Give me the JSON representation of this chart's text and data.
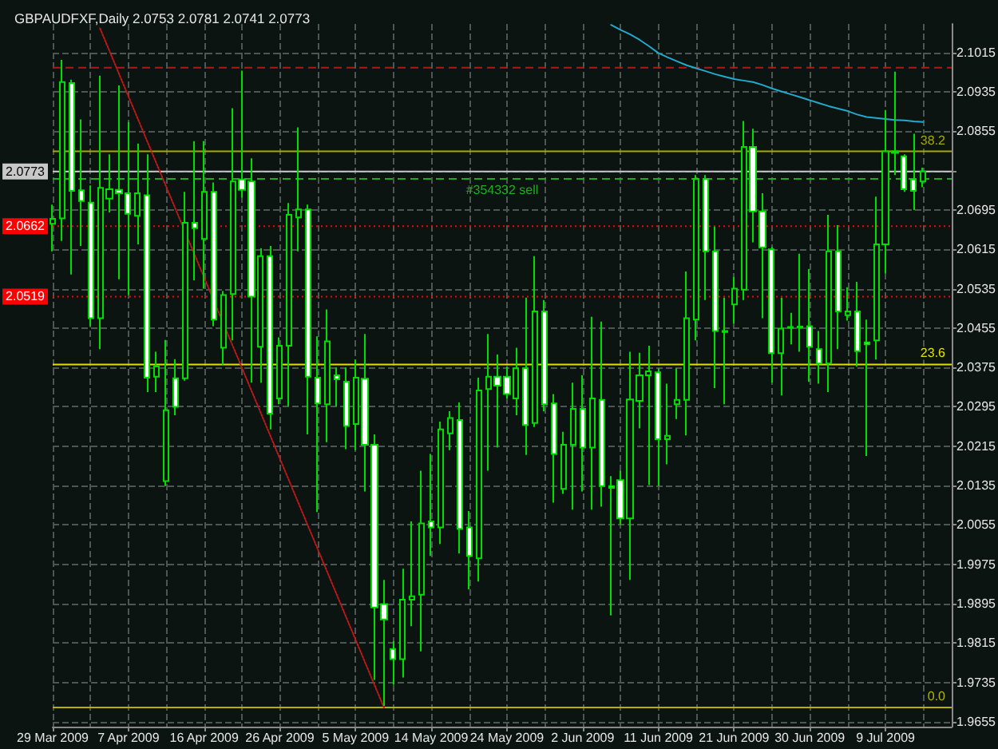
{
  "chart_data": {
    "type": "candlestick",
    "title": "GBPAUDFXF,Daily 2.0753 2.0781 2.0741 2.0773",
    "categories": [
      "29 Mar 2009",
      null,
      null,
      null,
      null,
      null,
      null,
      null,
      "7 Apr 2009",
      null,
      null,
      null,
      null,
      null,
      null,
      null,
      "16 Apr 2009",
      null,
      null,
      null,
      null,
      null,
      null,
      null,
      "26 Apr 2009",
      null,
      null,
      null,
      null,
      null,
      null,
      null,
      "5 May 2009",
      null,
      null,
      null,
      null,
      null,
      null,
      null,
      "14 May 2009",
      null,
      null,
      null,
      null,
      null,
      null,
      null,
      "24 May 2009",
      null,
      null,
      null,
      null,
      null,
      null,
      null,
      "2 Jun 2009",
      null,
      null,
      null,
      null,
      null,
      null,
      null,
      "11 Jun 2009",
      null,
      null,
      null,
      null,
      null,
      null,
      null,
      "21 Jun 2009",
      null,
      null,
      null,
      null,
      null,
      null,
      null,
      "30 Jun 2009",
      null,
      null,
      null,
      null,
      null,
      null,
      null,
      "9 Jul 2009",
      null,
      null,
      null,
      null,
      null,
      null,
      null
    ],
    "series": [
      {
        "color": "#00dd00",
        "ohlc": [
          [
            2.0667,
            2.0706,
            2.0611,
            2.0677
          ],
          [
            2.0678,
            2.1,
            2.0632,
            2.0955
          ],
          [
            2.0953,
            2.096,
            2.0564,
            2.0734
          ],
          [
            2.0735,
            2.0879,
            2.0622,
            2.0713
          ],
          [
            2.071,
            2.0745,
            2.0459,
            2.0475
          ],
          [
            2.0475,
            2.0968,
            2.0412,
            2.074
          ],
          [
            2.0718,
            2.0808,
            2.069,
            2.0737
          ],
          [
            2.0736,
            2.0948,
            2.0554,
            2.0729
          ],
          [
            2.0729,
            2.0874,
            2.0522,
            2.0687
          ],
          [
            2.0683,
            2.083,
            2.0625,
            2.0729
          ],
          [
            2.0725,
            2.0808,
            2.0325,
            2.0354
          ],
          [
            2.0356,
            2.0407,
            2.0325,
            2.0377
          ],
          [
            2.0144,
            2.0431,
            2.0134,
            2.0288
          ],
          [
            2.0353,
            2.0392,
            2.0278,
            2.0295
          ],
          [
            2.0353,
            2.0732,
            2.0348,
            2.0669
          ],
          [
            2.0669,
            2.0835,
            2.0552,
            2.0658
          ],
          [
            2.0636,
            2.0835,
            2.0535,
            2.0732
          ],
          [
            2.0732,
            2.0751,
            2.0459,
            2.0472
          ],
          [
            2.0415,
            2.053,
            2.038,
            2.0522
          ],
          [
            2.0524,
            2.0902,
            2.043,
            2.0753
          ],
          [
            2.0757,
            2.0978,
            2.072,
            2.0736
          ],
          [
            2.0753,
            2.08,
            2.0344,
            2.0519
          ],
          [
            2.0417,
            2.0617,
            2.0344,
            2.0601
          ],
          [
            2.0601,
            2.0622,
            2.0249,
            2.0281
          ],
          [
            2.0312,
            2.0436,
            2.03,
            2.0419
          ],
          [
            2.0419,
            2.0709,
            2.0296,
            2.0685
          ],
          [
            2.068,
            2.0863,
            2.0611,
            2.0696
          ],
          [
            2.0696,
            2.0706,
            2.0239,
            2.0356
          ],
          [
            2.0354,
            2.0438,
            2.0081,
            2.0302
          ],
          [
            2.03,
            2.0493,
            2.0223,
            2.0428
          ],
          [
            2.0359,
            2.0375,
            2.0296,
            2.0351
          ],
          [
            2.0346,
            2.0375,
            2.0209,
            2.0256
          ],
          [
            2.026,
            2.0391,
            2.0207,
            2.0354
          ],
          [
            2.0352,
            2.0443,
            2.0123,
            2.0218
          ],
          [
            2.0218,
            2.0239,
            1.974,
            1.9887
          ],
          [
            1.9894,
            1.9943,
            1.9687,
            1.9863
          ],
          [
            1.9803,
            1.9819,
            1.973,
            1.9782
          ],
          [
            1.9782,
            1.9966,
            1.9745,
            1.9903
          ],
          [
            1.9903,
            2.0062,
            1.9849,
            1.991
          ],
          [
            1.9913,
            2.0165,
            1.9798,
            2.0058
          ],
          [
            2.0062,
            2.0199,
            1.9992,
            2.005
          ],
          [
            2.005,
            2.0265,
            2.0016,
            2.0249
          ],
          [
            2.0241,
            2.0286,
            2.0207,
            2.0272
          ],
          [
            2.0268,
            2.0304,
            1.9997,
            2.0047
          ],
          [
            2.005,
            2.0083,
            1.9924,
            1.9992
          ],
          [
            1.9987,
            2.0354,
            1.994,
            2.0328
          ],
          [
            2.0331,
            2.0443,
            2.0165,
            2.0356
          ],
          [
            2.0356,
            2.0401,
            2.0212,
            2.0338
          ],
          [
            2.0356,
            2.0377,
            2.0312,
            2.0321
          ],
          [
            2.0312,
            2.0415,
            2.0278,
            2.0373
          ],
          [
            2.0373,
            2.0517,
            2.0197,
            2.0258
          ],
          [
            2.0262,
            2.0601,
            2.0254,
            2.0489
          ],
          [
            2.0489,
            2.0512,
            2.0286,
            2.03
          ],
          [
            2.0302,
            2.0321,
            2.01,
            2.0199
          ],
          [
            2.0128,
            2.0244,
            2.0118,
            2.0218
          ],
          [
            2.0218,
            2.0344,
            2.0086,
            2.0291
          ],
          [
            2.0291,
            2.0359,
            2.0123,
            2.0212
          ],
          [
            2.0212,
            2.0478,
            2.0086,
            2.0312
          ],
          [
            2.0309,
            2.0468,
            2.0092,
            2.0134
          ],
          [
            2.0134,
            2.0154,
            1.9871,
            2.013
          ],
          [
            2.0146,
            2.0165,
            2.0055,
            2.0068
          ],
          [
            2.0068,
            2.0407,
            1.9943,
            2.031
          ],
          [
            2.0307,
            2.0405,
            2.0251,
            2.0359
          ],
          [
            2.0359,
            2.0419,
            2.0136,
            2.0367
          ],
          [
            2.0365,
            2.0373,
            2.0134,
            2.0229
          ],
          [
            2.0229,
            2.0342,
            2.0178,
            2.0236
          ],
          [
            2.03,
            2.0373,
            2.027,
            2.0309
          ],
          [
            2.0309,
            2.057,
            2.0237,
            2.0475
          ],
          [
            2.0472,
            2.0766,
            2.043,
            2.0758
          ],
          [
            2.0758,
            2.0766,
            2.0512,
            2.0611
          ],
          [
            2.0611,
            2.0661,
            2.0333,
            2.0449
          ],
          [
            2.0449,
            2.0517,
            2.03,
            2.0447
          ],
          [
            2.0503,
            2.0559,
            2.0464,
            2.0535
          ],
          [
            2.0533,
            2.0876,
            2.0512,
            2.0823
          ],
          [
            2.0823,
            2.086,
            2.0629,
            2.0692
          ],
          [
            2.0692,
            2.0729,
            2.0475,
            2.0619
          ],
          [
            2.0615,
            2.062,
            2.0344,
            2.0404
          ],
          [
            2.0404,
            2.0517,
            2.0318,
            2.0454
          ],
          [
            2.0455,
            2.0486,
            2.0422,
            2.0457
          ],
          [
            2.0458,
            2.0606,
            2.0407,
            2.0456
          ],
          [
            2.0459,
            2.0575,
            2.0346,
            2.0417
          ],
          [
            2.0412,
            2.0449,
            2.0342,
            2.0383
          ],
          [
            2.0383,
            2.0685,
            2.0325,
            2.0611
          ],
          [
            2.0611,
            2.0664,
            2.0412,
            2.0489
          ],
          [
            2.0481,
            2.0538,
            2.047,
            2.0489
          ],
          [
            2.0489,
            2.0549,
            2.0377,
            2.0408
          ],
          [
            2.0426,
            2.0472,
            2.0195,
            2.0422
          ],
          [
            2.043,
            2.0722,
            2.0391,
            2.0625
          ],
          [
            2.0625,
            2.0898,
            2.0566,
            2.0814
          ],
          [
            2.0811,
            2.0976,
            2.0766,
            2.0814
          ],
          [
            2.0804,
            2.0808,
            2.0732,
            2.0737
          ],
          [
            2.0757,
            2.085,
            2.0695,
            2.0734
          ],
          [
            2.0753,
            2.0781,
            2.0741,
            2.0773
          ],
          null,
          null,
          null
        ]
      },
      {
        "type": "line",
        "color": "#22aacc",
        "values": [
          null,
          null,
          null,
          null,
          null,
          null,
          null,
          null,
          null,
          null,
          null,
          null,
          null,
          null,
          null,
          null,
          null,
          null,
          null,
          null,
          null,
          null,
          null,
          null,
          null,
          null,
          null,
          null,
          null,
          null,
          null,
          null,
          null,
          null,
          null,
          null,
          null,
          null,
          null,
          null,
          null,
          null,
          null,
          null,
          null,
          null,
          null,
          null,
          null,
          null,
          null,
          null,
          null,
          null,
          null,
          null,
          null,
          null,
          null,
          2.1071,
          2.1061,
          2.1052,
          2.1041,
          2.1028,
          2.1014,
          2.1005,
          2.0997,
          2.0989,
          2.0983,
          2.0977,
          2.0971,
          2.0966,
          2.0961,
          2.0958,
          2.0955,
          2.0949,
          2.0942,
          2.0936,
          2.093,
          2.0924,
          2.0918,
          2.0912,
          2.0906,
          2.0901,
          2.0896,
          2.0889,
          2.0884,
          2.0882,
          2.088,
          2.0878,
          2.0877,
          2.0875,
          2.0874,
          null,
          null,
          null
        ]
      },
      {
        "type": "line",
        "color": "#c01818",
        "line_style": "dotted",
        "values": [
          null,
          null,
          null,
          null,
          null,
          2.1064,
          2.1018,
          2.0972,
          2.0926,
          2.088,
          2.0834,
          2.0788,
          2.0742,
          2.0696,
          2.065,
          2.0604,
          2.0558,
          2.0512,
          2.0466,
          2.042,
          2.0374,
          2.0328,
          2.0282,
          2.0236,
          2.019,
          2.0144,
          2.0098,
          2.0052,
          2.0006,
          1.996,
          1.9914,
          1.9868,
          1.9822,
          1.9776,
          1.973,
          1.9684,
          null,
          null,
          null,
          null,
          null,
          null,
          null,
          null,
          null,
          null,
          null,
          null,
          null,
          null,
          null,
          null,
          null,
          null,
          null,
          null,
          null,
          null,
          null,
          null,
          null,
          null,
          null,
          null,
          null,
          null,
          null,
          null,
          null,
          null,
          null,
          null,
          null,
          null,
          null,
          null,
          null,
          null,
          null,
          null,
          null,
          null,
          null,
          null,
          null,
          null,
          null,
          null,
          null,
          null,
          null,
          null,
          null,
          null,
          null,
          null
        ]
      }
    ],
    "ylim": [
      1.9645,
      2.1073
    ],
    "yticks": [
      1.9655,
      1.9735,
      1.9815,
      1.9895,
      1.9975,
      2.0055,
      2.0135,
      2.0215,
      2.0295,
      2.0375,
      2.0455,
      2.0535,
      2.0615,
      2.0695,
      {
        "value": 2.0775,
        "label": null
      },
      2.0855,
      2.0935,
      2.1015
    ],
    "grid": true,
    "marker": "none",
    "ref_lines": [
      {
        "axis": "y",
        "value": 2.0984,
        "color": "#b01818",
        "line_style": "dashed"
      },
      {
        "axis": "y",
        "value": 2.0814,
        "color": "#a8a800",
        "line_style": "solid"
      },
      {
        "axis": "y",
        "value": 2.0773,
        "label": "2.0773",
        "color": "#c8c8c8",
        "line_style": "solid"
      },
      {
        "axis": "y",
        "value": 2.0758,
        "label": "#354332 sell",
        "color": "#22aa22",
        "line_style": "dashed"
      },
      {
        "axis": "y",
        "value": 2.0662,
        "label": "2.0662",
        "color": "#ff0000",
        "line_style": "dotted"
      },
      {
        "axis": "y",
        "value": 2.0519,
        "label": "2.0519",
        "color": "#ff0000",
        "line_style": "dotted"
      },
      {
        "axis": "y",
        "value": 2.0381,
        "color": "#e0e000",
        "line_style": "solid"
      },
      {
        "axis": "y",
        "value": 1.9684,
        "color": "#b4b400",
        "line_style": "solid"
      }
    ],
    "annotations": [
      {
        "text": "38.2",
        "y": 2.0814
      },
      {
        "text": "23.6",
        "y": 2.0381
      },
      {
        "text": "0.0",
        "y": 1.9684
      }
    ]
  }
}
